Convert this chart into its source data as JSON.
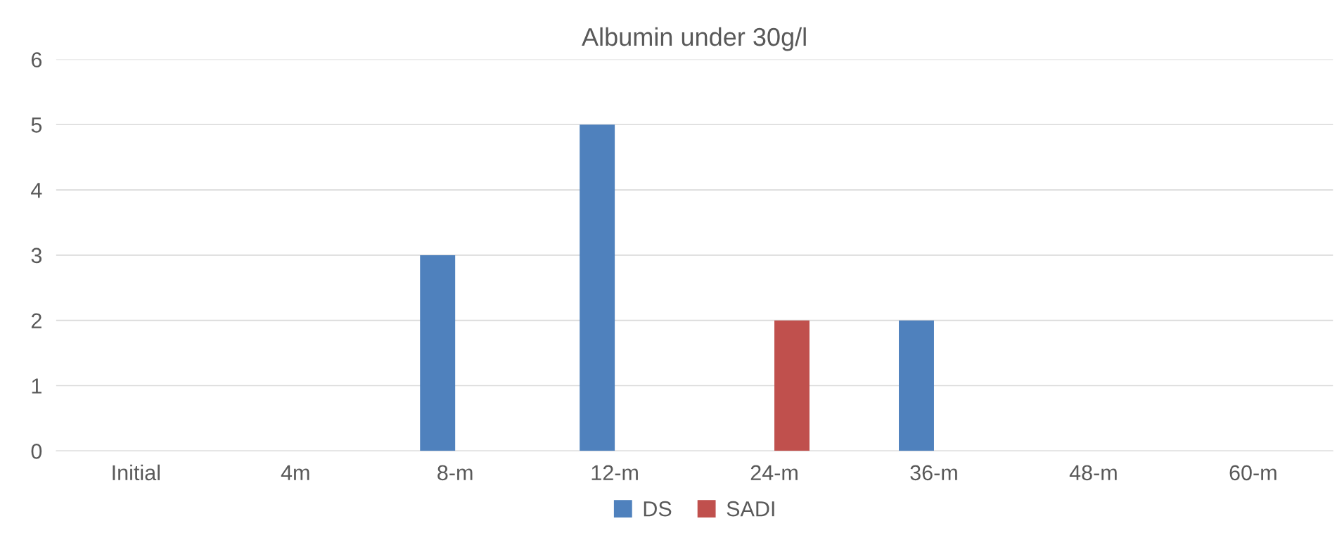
{
  "chart_data": {
    "type": "bar",
    "title": "Albumin under 30g/l",
    "categories": [
      "Initial",
      "4m",
      "8-m",
      "12-m",
      "24-m",
      "36-m",
      "48-m",
      "60-m"
    ],
    "series": [
      {
        "name": "DS",
        "color": "#4f81bd",
        "values": [
          0,
          0,
          3,
          5,
          0,
          2,
          0,
          0
        ]
      },
      {
        "name": "SADI",
        "color": "#c0504d",
        "values": [
          0,
          0,
          0,
          0,
          2,
          0,
          0,
          0
        ]
      }
    ],
    "ylim": [
      0,
      6
    ],
    "yticks": [
      0,
      1,
      2,
      3,
      4,
      5,
      6
    ],
    "grid": "y",
    "legend": "bottom"
  }
}
